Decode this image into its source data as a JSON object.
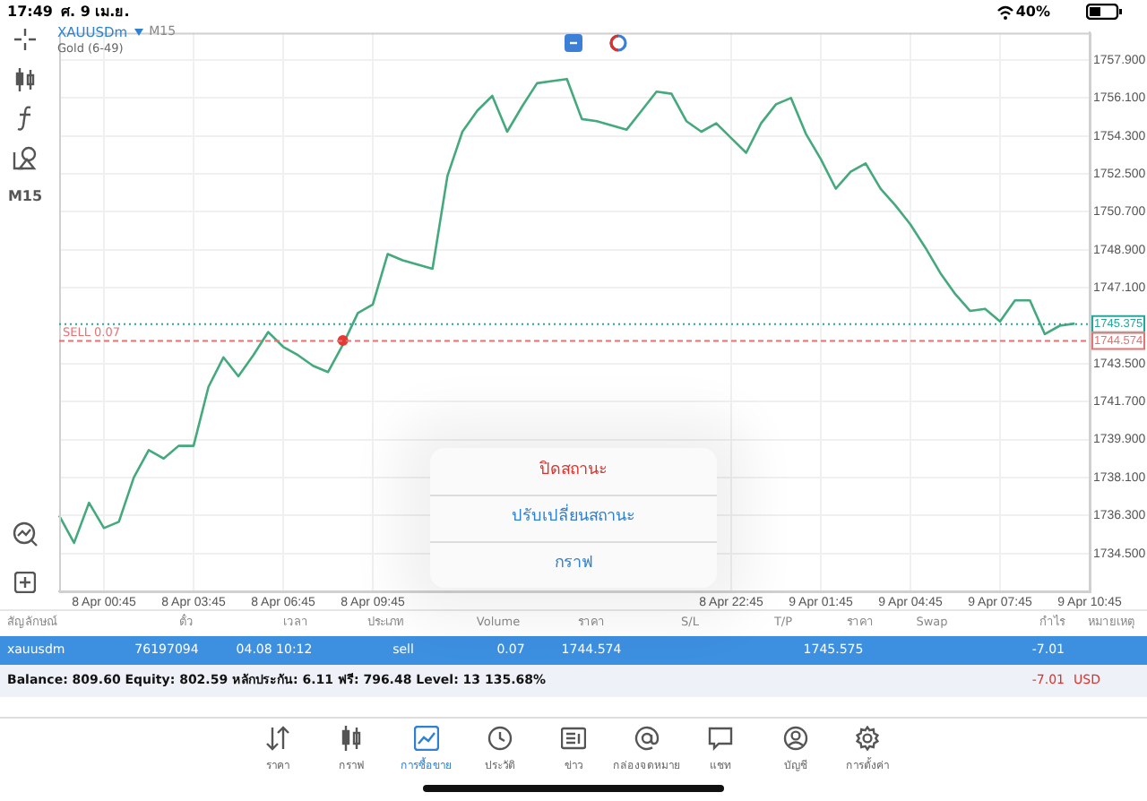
{
  "chart_data": {
    "type": "line",
    "title": "XAUUSDm",
    "subtitle": "Gold (6-49)",
    "categories": [
      null,
      null,
      null,
      "8 Apr 00:45",
      null,
      null,
      null,
      null,
      null,
      "8 Apr 03:45",
      null,
      null,
      null,
      null,
      null,
      "8 Apr 06:45",
      null,
      null,
      null,
      null,
      null,
      "8 Apr 09:45",
      null,
      null,
      null,
      null,
      null,
      null,
      null,
      null,
      null,
      null,
      null,
      null,
      null,
      null,
      null,
      null,
      null,
      null,
      null,
      null,
      null,
      null,
      null,
      "8 Apr 22:45",
      null,
      null,
      null,
      null,
      null,
      "9 Apr 01:45",
      null,
      null,
      null,
      null,
      null,
      "9 Apr 04:45",
      null,
      null,
      null,
      null,
      null,
      "9 Apr 07:45",
      null,
      null,
      null,
      null,
      null,
      "9 Apr 10:45"
    ],
    "series": [
      {
        "color": "#45a97e",
        "values": [
          1736.3,
          1735.0,
          1736.9,
          1735.7,
          1736.0,
          1738.1,
          1739.4,
          1739.0,
          1739.6,
          1739.6,
          1742.4,
          1743.8,
          1742.9,
          1743.9,
          1745.0,
          1744.3,
          1743.9,
          1743.4,
          1743.1,
          1744.4,
          1745.9,
          1746.3,
          1748.7,
          1748.4,
          1748.2,
          1748.0,
          1752.4,
          1754.5,
          1755.5,
          1756.2,
          1754.5,
          1755.7,
          1756.8,
          1756.9,
          1757.0,
          1755.1,
          1755.0,
          1754.8,
          1754.6,
          1755.5,
          1756.4,
          1756.3,
          1755.0,
          1754.5,
          1754.9,
          1754.2,
          1753.5,
          1754.9,
          1755.8,
          1756.1,
          1754.4,
          1753.2,
          1751.8,
          1752.6,
          1753.0,
          1751.8,
          1751.0,
          1750.1,
          1749.0,
          1747.8,
          1746.8,
          1746.0,
          1746.1,
          1745.5,
          1746.5,
          1746.5,
          1744.9,
          1745.3,
          1745.4,
          null
        ]
      },
      {
        "type": "scatter",
        "color": "#e53935",
        "marker": "circle",
        "values": [
          null,
          null,
          null,
          null,
          null,
          null,
          null,
          null,
          null,
          null,
          null,
          null,
          null,
          null,
          null,
          null,
          null,
          null,
          null,
          1744.6,
          null,
          null,
          null,
          null,
          null,
          null,
          null,
          null,
          null,
          null,
          null,
          null,
          null,
          null,
          null,
          null,
          null,
          null,
          null,
          null,
          null,
          null,
          null,
          null,
          null,
          null,
          null,
          null,
          null,
          null,
          null,
          null,
          null,
          null,
          null,
          null,
          null,
          null,
          null,
          null,
          null,
          null,
          null,
          null,
          null,
          null,
          null,
          null,
          null,
          null
        ]
      }
    ],
    "ylim": [
      1732.7,
      1759.2
    ],
    "yticks": [
      {
        "value": 1734.5,
        "label": "1734.500"
      },
      {
        "value": 1736.3,
        "label": "1736.300"
      },
      {
        "value": 1738.1,
        "label": "1738.100"
      },
      {
        "value": 1739.9,
        "label": "1739.900"
      },
      {
        "value": 1741.7,
        "label": "1741.700"
      },
      {
        "value": 1743.5,
        "label": "1743.500"
      },
      {
        "value": 1747.1,
        "label": "1747.100"
      },
      {
        "value": 1748.9,
        "label": "1748.900"
      },
      {
        "value": 1750.7,
        "label": "1750.700"
      },
      {
        "value": 1752.5,
        "label": "1752.500"
      },
      {
        "value": 1754.3,
        "label": "1754.300"
      },
      {
        "value": 1756.1,
        "label": "1756.100"
      },
      {
        "value": 1757.9,
        "label": "1757.900"
      }
    ],
    "grid": true,
    "ref_lines": [
      {
        "axis": "y",
        "value": 1745.375,
        "label": "1745.375",
        "color": "#26a69a",
        "line_style": "dotted"
      },
      {
        "axis": "y",
        "value": 1744.574,
        "label": "1744.574",
        "color": "#e57373",
        "line_style": "dashed"
      }
    ],
    "annotations": [
      "17:49",
      "ศ. 9 เม.ย.",
      "40%",
      "M15",
      {
        "text": "SELL 0.07",
        "y": 1744.574
      },
      "สัญลักษณ์",
      "ตั๋ว",
      "เวลา",
      "ประเภท",
      "Volume",
      "ราคา",
      "S/L",
      "T/P",
      "ราคา",
      "Swap",
      "กำไร",
      "หมายเหตุ",
      "xauusdm",
      "76197094",
      "04.08 10:12",
      "sell",
      "0.07",
      "1744.574",
      "1745.575",
      "-7.01",
      "Balance: 809.60 Equity: 802.59 หลักประกัน: 6.11 ฟรี: 796.48 Level: 13 135.68%",
      "-7.01",
      "USD",
      "ราคา",
      "กราฟ",
      "การซื้อขาย",
      "ประวัติ",
      "ข่าว",
      "กล่องจดหมาย",
      "แชท",
      "บัญชี",
      "การตั้งค่า",
      "ปิดสถานะ",
      "ปรับเปลี่ยนสถานะ",
      "กราฟ",
      "M15"
    ]
  }
}
